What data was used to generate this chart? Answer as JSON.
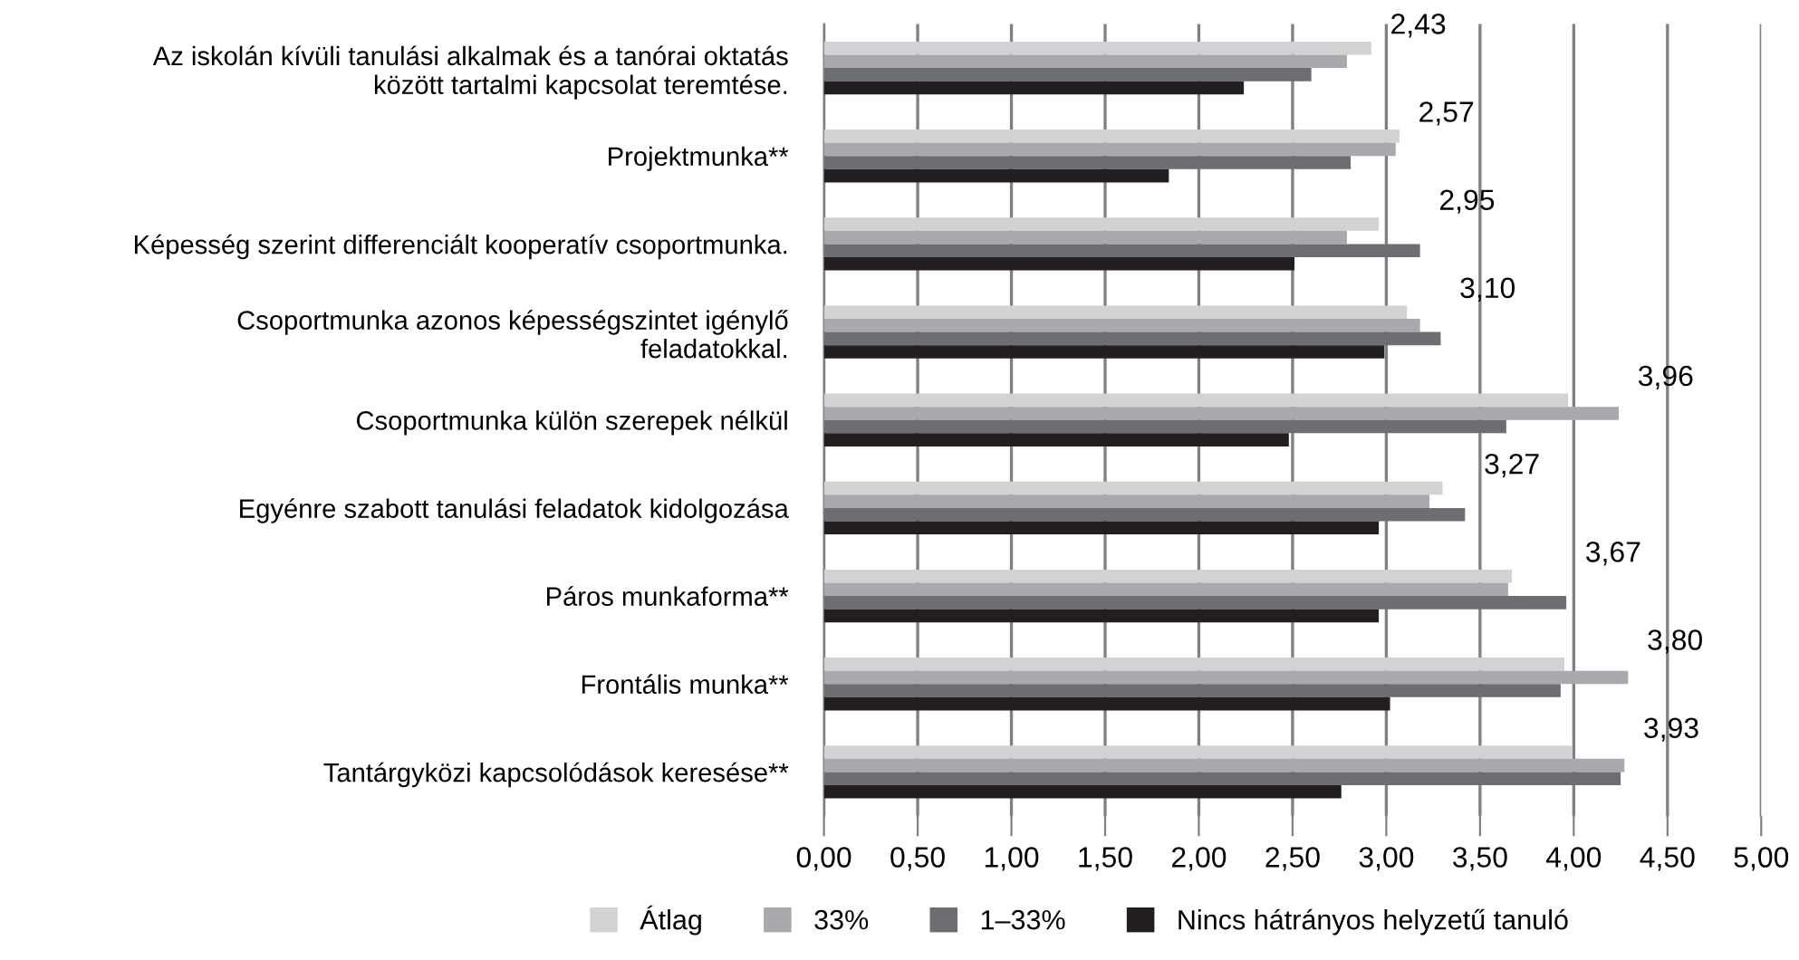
{
  "chart_data": {
    "type": "bar",
    "orientation": "horizontal",
    "categories": [
      "Az iskolán kívüli tanulási alkalmak és a tanórai oktatás\nközött tartalmi kapcsolat teremtése.",
      "Projektmunka**",
      "Képesség szerint differenciált kooperatív csoportmunka.",
      "Csoportmunka azonos képességszintet igénylő\nfeladatokkal.",
      "Csoportmunka külön szerepek nélkül",
      "Egyénre szabott tanulási feladatok kidolgozása",
      "Páros munkaforma**",
      "Frontális munka**",
      "Tantárgyközi kapcsolódások keresése**"
    ],
    "series": [
      {
        "name": "Átlag",
        "color": "#d1d2d4",
        "values": [
          2.92,
          3.07,
          2.96,
          3.11,
          3.97,
          3.3,
          3.67,
          3.95,
          3.99
        ]
      },
      {
        "name": "33%",
        "color": "#a7a9ac",
        "values": [
          2.79,
          3.05,
          2.79,
          3.18,
          4.24,
          3.23,
          3.65,
          4.29,
          4.27
        ]
      },
      {
        "name": "1–33%",
        "color": "#6d6e71",
        "values": [
          2.6,
          2.81,
          3.18,
          3.29,
          3.64,
          3.42,
          3.96,
          3.93,
          4.25
        ]
      },
      {
        "name": "Nincs hátrányos helyzetű tanuló",
        "color": "#231f20",
        "values": [
          2.24,
          1.84,
          2.51,
          2.99,
          2.48,
          2.96,
          2.96,
          3.02,
          2.76
        ]
      }
    ],
    "xlim": [
      0,
      5
    ],
    "xticks": [
      {
        "value": 0,
        "label": "0,00"
      },
      {
        "value": 0.5,
        "label": "0,50"
      },
      {
        "value": 1,
        "label": "1,00"
      },
      {
        "value": 1.5,
        "label": "1,50"
      },
      {
        "value": 2,
        "label": "2,00"
      },
      {
        "value": 2.5,
        "label": "2,50"
      },
      {
        "value": 3,
        "label": "3,00"
      },
      {
        "value": 3.5,
        "label": "3,50"
      },
      {
        "value": 4,
        "label": "4,00"
      },
      {
        "value": 4.5,
        "label": "4,50"
      },
      {
        "value": 5,
        "label": "5,00"
      }
    ],
    "grid": "x",
    "legend": "bottom",
    "annotations": [
      "2,43",
      "2,57",
      "2,95",
      "3,10",
      "3,96",
      "3,27",
      "3,67",
      "3,80",
      "3,93"
    ]
  }
}
